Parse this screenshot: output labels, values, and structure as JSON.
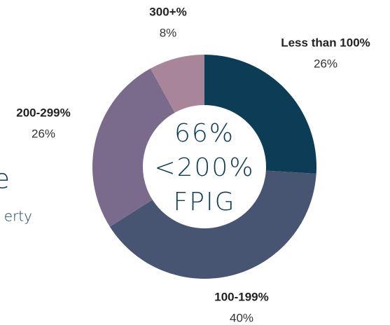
{
  "chart_data": {
    "type": "donut",
    "categories": [
      "Less than 100%",
      "100-199%",
      "200-299%",
      "300+%"
    ],
    "values": [
      26,
      40,
      26,
      8
    ],
    "value_labels": [
      "26%",
      "40%",
      "26%",
      "8%"
    ],
    "colors": [
      "#0d3d56",
      "#475573",
      "#7a6b8c",
      "#a98599"
    ],
    "center_text": [
      "66%",
      "<200%",
      "FPIG"
    ],
    "cropped_texts": [
      "e",
      "erty",
      ")"
    ]
  }
}
